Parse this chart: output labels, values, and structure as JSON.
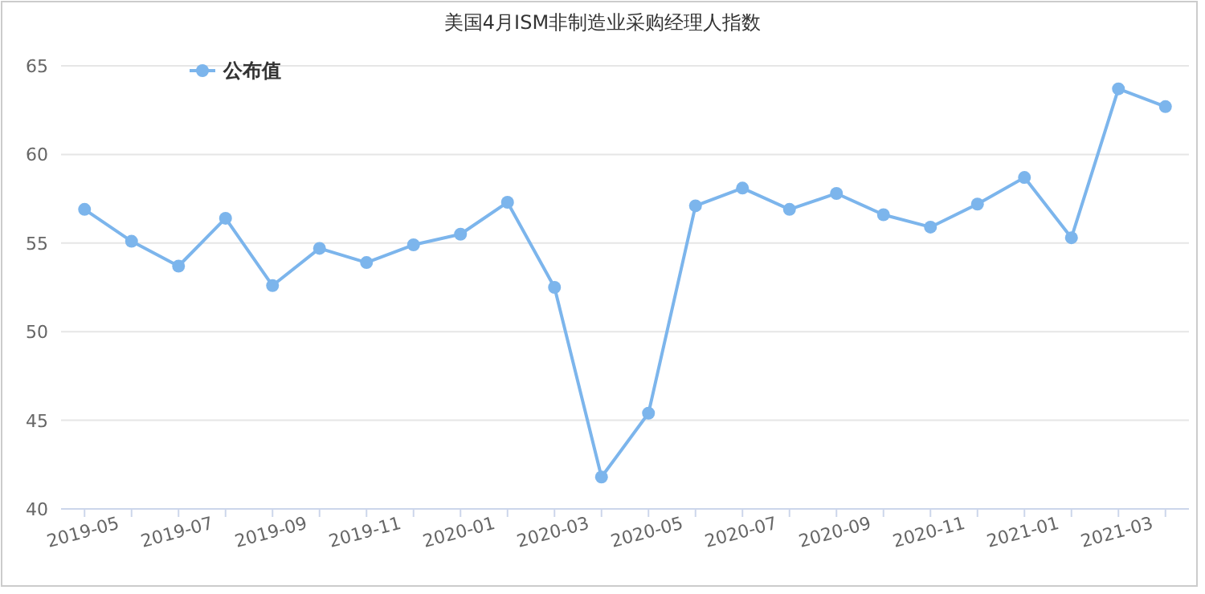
{
  "chart_data": {
    "type": "line",
    "title": "美国4月ISM非制造业采购经理人指数",
    "categories": [
      "2019-05",
      null,
      "2019-07",
      null,
      "2019-09",
      null,
      "2019-11",
      null,
      "2020-01",
      null,
      "2020-03",
      null,
      "2020-05",
      null,
      "2020-07",
      null,
      "2020-09",
      null,
      "2020-11",
      null,
      "2021-01",
      null,
      "2021-03",
      null
    ],
    "series": [
      {
        "name": "公布值",
        "color": "#7cb5ec",
        "values": [
          56.9,
          55.1,
          53.7,
          56.4,
          52.6,
          54.7,
          53.9,
          54.9,
          55.5,
          57.3,
          52.5,
          41.8,
          45.4,
          57.1,
          58.1,
          56.9,
          57.8,
          56.6,
          55.9,
          57.2,
          58.7,
          55.3,
          63.7,
          62.7
        ]
      }
    ],
    "ylim": [
      40,
      65
    ],
    "yticks": [
      40,
      45,
      50,
      55,
      60,
      65
    ],
    "grid": "y",
    "legend": "top left",
    "marker": "circle",
    "line_style": "solid"
  }
}
